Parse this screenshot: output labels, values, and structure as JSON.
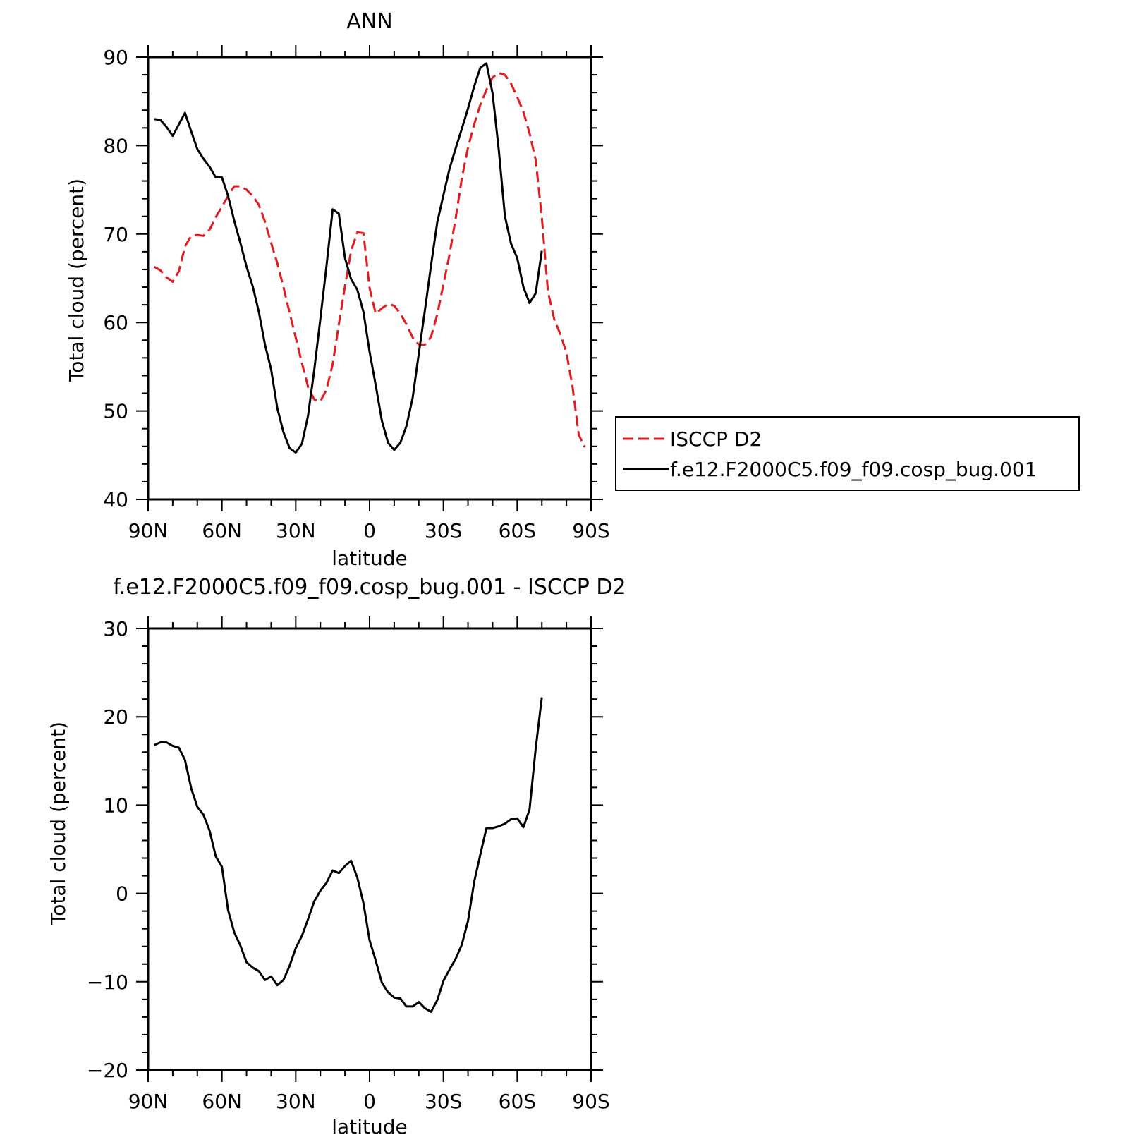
{
  "chart_data": [
    {
      "type": "line",
      "title": "ANN",
      "xlabel": "latitude",
      "ylabel": "Total cloud (percent)",
      "ylim": [
        40,
        90
      ],
      "yticks": [
        "40",
        "50",
        "60",
        "70",
        "80",
        "90"
      ],
      "xlim": [
        90,
        -90
      ],
      "xticks": [
        {
          "value": 90,
          "label": "90N"
        },
        {
          "value": 60,
          "label": "60N"
        },
        {
          "value": 30,
          "label": "30N"
        },
        {
          "value": 0,
          "label": "0"
        },
        {
          "value": -30,
          "label": "30S"
        },
        {
          "value": -60,
          "label": "60S"
        },
        {
          "value": -90,
          "label": "90S"
        }
      ],
      "legend": {
        "position": "right"
      },
      "series": [
        {
          "name": "ISCCP D2",
          "color": "#e41a1c",
          "dash": "dashed",
          "points": [
            [
              87.5,
              66.3
            ],
            [
              85,
              65.9
            ],
            [
              82.5,
              65.1
            ],
            [
              80,
              64.6
            ],
            [
              77.5,
              65.8
            ],
            [
              75,
              68.6
            ],
            [
              72.5,
              69.8
            ],
            [
              70,
              69.9
            ],
            [
              67.5,
              69.8
            ],
            [
              65,
              70.5
            ],
            [
              62.5,
              71.9
            ],
            [
              60,
              73.1
            ],
            [
              57.5,
              74.3
            ],
            [
              55,
              75.4
            ],
            [
              52.5,
              75.4
            ],
            [
              50,
              75
            ],
            [
              47.5,
              74.3
            ],
            [
              45,
              73.3
            ],
            [
              42.5,
              71.4
            ],
            [
              40,
              69
            ],
            [
              37.5,
              66.7
            ],
            [
              35,
              64
            ],
            [
              32.5,
              61.1
            ],
            [
              30,
              58.3
            ],
            [
              27.5,
              55.4
            ],
            [
              25,
              52.7
            ],
            [
              22.5,
              51.3
            ],
            [
              20,
              51.1
            ],
            [
              17.5,
              52.4
            ],
            [
              15,
              55.3
            ],
            [
              12.5,
              59.8
            ],
            [
              10,
              64.1
            ],
            [
              7.5,
              68.1
            ],
            [
              5,
              70.2
            ],
            [
              2.5,
              70.1
            ],
            [
              0,
              63.9
            ],
            [
              -2.5,
              61
            ],
            [
              -5,
              61.6
            ],
            [
              -7.5,
              62.1
            ],
            [
              -10,
              61.9
            ],
            [
              -12.5,
              61
            ],
            [
              -15,
              59.8
            ],
            [
              -17.5,
              58.3
            ],
            [
              -20,
              57.5
            ],
            [
              -22.5,
              57.5
            ],
            [
              -25,
              58.4
            ],
            [
              -27.5,
              60.9
            ],
            [
              -30,
              64.3
            ],
            [
              -32.5,
              67.7
            ],
            [
              -35,
              71.8
            ],
            [
              -37.5,
              76.3
            ],
            [
              -40,
              79.8
            ],
            [
              -42.5,
              82.4
            ],
            [
              -45,
              84.6
            ],
            [
              -47.5,
              86.3
            ],
            [
              -50,
              87.7
            ],
            [
              -52.5,
              88.2
            ],
            [
              -55,
              88
            ],
            [
              -57.5,
              87
            ],
            [
              -60,
              85.5
            ],
            [
              -62.5,
              83.8
            ],
            [
              -65,
              81.4
            ],
            [
              -67.5,
              78.4
            ],
            [
              -70,
              71.9
            ],
            [
              -72.5,
              63.5
            ],
            [
              -75,
              60.4
            ],
            [
              -77.5,
              58.7
            ],
            [
              -80,
              56.6
            ],
            [
              -82.5,
              52.7
            ],
            [
              -85,
              47.3
            ],
            [
              -87.5,
              45.9
            ]
          ]
        },
        {
          "name": "f.e12.F2000C5.f09_f09.cosp_bug.001",
          "color": "#000000",
          "dash": "solid",
          "points": [
            [
              87.5,
              83
            ],
            [
              85,
              82.9
            ],
            [
              82.5,
              82.1
            ],
            [
              80,
              81.1
            ],
            [
              77.5,
              82.4
            ],
            [
              75,
              83.7
            ],
            [
              72.5,
              81.6
            ],
            [
              70,
              79.6
            ],
            [
              67.5,
              78.5
            ],
            [
              65,
              77.6
            ],
            [
              62.5,
              76.4
            ],
            [
              60,
              76.4
            ],
            [
              57.5,
              74.3
            ],
            [
              55,
              71.5
            ],
            [
              52.5,
              69
            ],
            [
              50,
              66.3
            ],
            [
              47.5,
              64.1
            ],
            [
              45,
              61.2
            ],
            [
              42.5,
              57.5
            ],
            [
              40,
              54.7
            ],
            [
              37.5,
              50.3
            ],
            [
              35,
              47.6
            ],
            [
              32.5,
              45.8
            ],
            [
              30,
              45.3
            ],
            [
              27.5,
              46.3
            ],
            [
              25,
              49.5
            ],
            [
              22.5,
              54.6
            ],
            [
              20,
              60.4
            ],
            [
              17.5,
              66.4
            ],
            [
              15,
              72.8
            ],
            [
              12.5,
              72.3
            ],
            [
              10,
              67.3
            ],
            [
              7.5,
              64.9
            ],
            [
              5,
              63.7
            ],
            [
              2.5,
              61.2
            ],
            [
              0,
              56.7
            ],
            [
              -2.5,
              52.9
            ],
            [
              -5,
              48.9
            ],
            [
              -7.5,
              46.4
            ],
            [
              -10,
              45.6
            ],
            [
              -12.5,
              46.4
            ],
            [
              -15,
              48.3
            ],
            [
              -17.5,
              51.5
            ],
            [
              -20,
              56.5
            ],
            [
              -22.5,
              61.4
            ],
            [
              -25,
              66.5
            ],
            [
              -27.5,
              71.3
            ],
            [
              -30,
              74.4
            ],
            [
              -32.5,
              77.4
            ],
            [
              -35,
              79.7
            ],
            [
              -37.5,
              81.9
            ],
            [
              -40,
              84.2
            ],
            [
              -42.5,
              86.7
            ],
            [
              -45,
              88.8
            ],
            [
              -47.5,
              89.3
            ],
            [
              -50,
              85.9
            ],
            [
              -52.5,
              79.5
            ],
            [
              -55,
              72
            ],
            [
              -57.5,
              68.9
            ],
            [
              -60,
              67.3
            ],
            [
              -62.5,
              64
            ],
            [
              -65,
              62.2
            ],
            [
              -67.5,
              63.3
            ],
            [
              -70,
              68.1
            ]
          ]
        }
      ]
    },
    {
      "type": "line",
      "title": "f.e12.F2000C5.f09_f09.cosp_bug.001 - ISCCP D2",
      "xlabel": "latitude",
      "ylabel": "Total cloud (percent)",
      "ylim": [
        -20,
        30
      ],
      "yticks": [
        "−20",
        "−10",
        "0",
        "10",
        "20",
        "30"
      ],
      "xlim": [
        90,
        -90
      ],
      "xticks": [
        {
          "value": 90,
          "label": "90N"
        },
        {
          "value": 60,
          "label": "60N"
        },
        {
          "value": 30,
          "label": "30N"
        },
        {
          "value": 0,
          "label": "0"
        },
        {
          "value": -30,
          "label": "30S"
        },
        {
          "value": -60,
          "label": "60S"
        },
        {
          "value": -90,
          "label": "90S"
        }
      ],
      "series": [
        {
          "color": "#000000",
          "dash": "solid",
          "points": [
            [
              87.5,
              16.8
            ],
            [
              85,
              17.1
            ],
            [
              82.5,
              17.1
            ],
            [
              80,
              16.7
            ],
            [
              77.5,
              16.5
            ],
            [
              75,
              15.1
            ],
            [
              72.5,
              11.9
            ],
            [
              70,
              9.8
            ],
            [
              67.5,
              8.9
            ],
            [
              65,
              7.1
            ],
            [
              62.5,
              4.2
            ],
            [
              60,
              3
            ],
            [
              57.5,
              -1.9
            ],
            [
              55,
              -4.4
            ],
            [
              52.5,
              -5.9
            ],
            [
              50,
              -7.8
            ],
            [
              47.5,
              -8.4
            ],
            [
              45,
              -8.8
            ],
            [
              42.5,
              -9.8
            ],
            [
              40,
              -9.4
            ],
            [
              37.5,
              -10.4
            ],
            [
              35,
              -9.8
            ],
            [
              32.5,
              -8.2
            ],
            [
              30,
              -6.2
            ],
            [
              27.5,
              -4.8
            ],
            [
              25,
              -2.9
            ],
            [
              22.5,
              -0.9
            ],
            [
              20,
              0.3
            ],
            [
              17.5,
              1.2
            ],
            [
              15,
              2.6
            ],
            [
              12.5,
              2.3
            ],
            [
              10,
              3.1
            ],
            [
              7.5,
              3.7
            ],
            [
              5,
              1.8
            ],
            [
              2.5,
              -1.1
            ],
            [
              0,
              -5.3
            ],
            [
              -2.5,
              -7.6
            ],
            [
              -5,
              -10.1
            ],
            [
              -7.5,
              -11.2
            ],
            [
              -10,
              -11.8
            ],
            [
              -12.5,
              -11.9
            ],
            [
              -15,
              -12.8
            ],
            [
              -17.5,
              -12.8
            ],
            [
              -20,
              -12.3
            ],
            [
              -22.5,
              -13
            ],
            [
              -25,
              -13.4
            ],
            [
              -27.5,
              -12.1
            ],
            [
              -30,
              -9.9
            ],
            [
              -32.5,
              -8.6
            ],
            [
              -35,
              -7.4
            ],
            [
              -37.5,
              -5.8
            ],
            [
              -40,
              -3.1
            ],
            [
              -42.5,
              1.3
            ],
            [
              -45,
              4.4
            ],
            [
              -47.5,
              7.4
            ],
            [
              -50,
              7.4
            ],
            [
              -52.5,
              7.6
            ],
            [
              -55,
              7.9
            ],
            [
              -57.5,
              8.4
            ],
            [
              -60,
              8.5
            ],
            [
              -62.5,
              7.5
            ],
            [
              -65,
              9.5
            ],
            [
              -67.5,
              16.4
            ],
            [
              -70,
              22.2
            ]
          ]
        }
      ]
    }
  ]
}
